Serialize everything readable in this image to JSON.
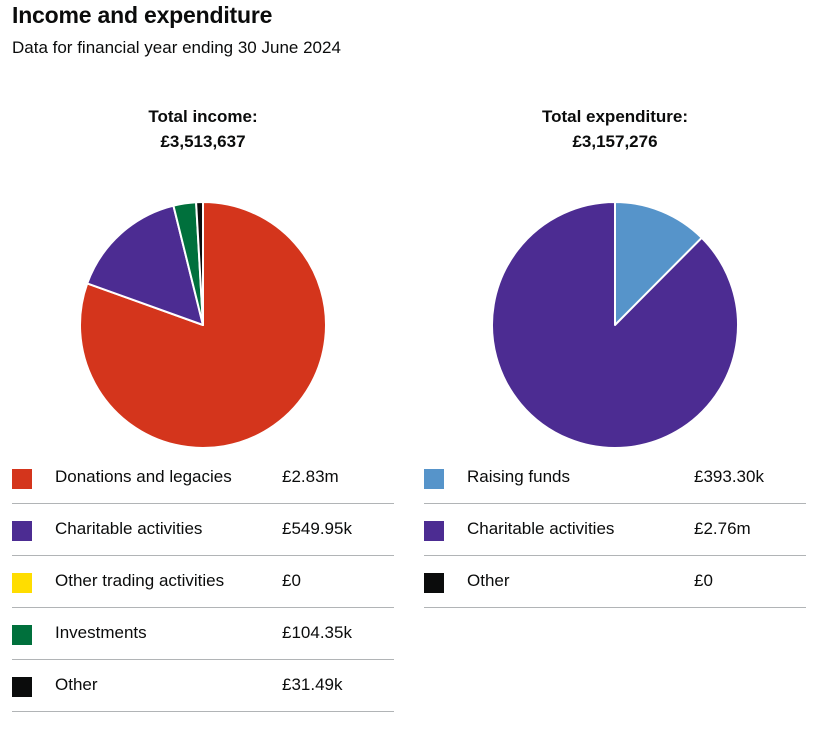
{
  "page": {
    "title": "Income and expenditure",
    "subtitle": "Data for financial year ending 30 June 2024"
  },
  "chart_data": [
    {
      "type": "pie",
      "title": "Total income:",
      "total": "£3,513,637",
      "categories": [
        "Donations and legacies",
        "Charitable activities",
        "Other trading activities",
        "Investments",
        "Other"
      ],
      "values": [
        2827850,
        549950,
        0,
        104350,
        31490
      ],
      "display_values": [
        "£2.83m",
        "£549.95k",
        "£0",
        "£104.35k",
        "£31.49k"
      ],
      "colors": [
        "#d4351c",
        "#4c2c92",
        "#ffdd00",
        "#00703c",
        "#0b0c0c"
      ]
    },
    {
      "type": "pie",
      "title": "Total expenditure:",
      "total": "£3,157,276",
      "categories": [
        "Raising funds",
        "Charitable activities",
        "Other"
      ],
      "values": [
        393300,
        2763976,
        0
      ],
      "display_values": [
        "£393.30k",
        "£2.76m",
        "£0"
      ],
      "colors": [
        "#5694ca",
        "#4c2c92",
        "#0b0c0c"
      ]
    }
  ]
}
